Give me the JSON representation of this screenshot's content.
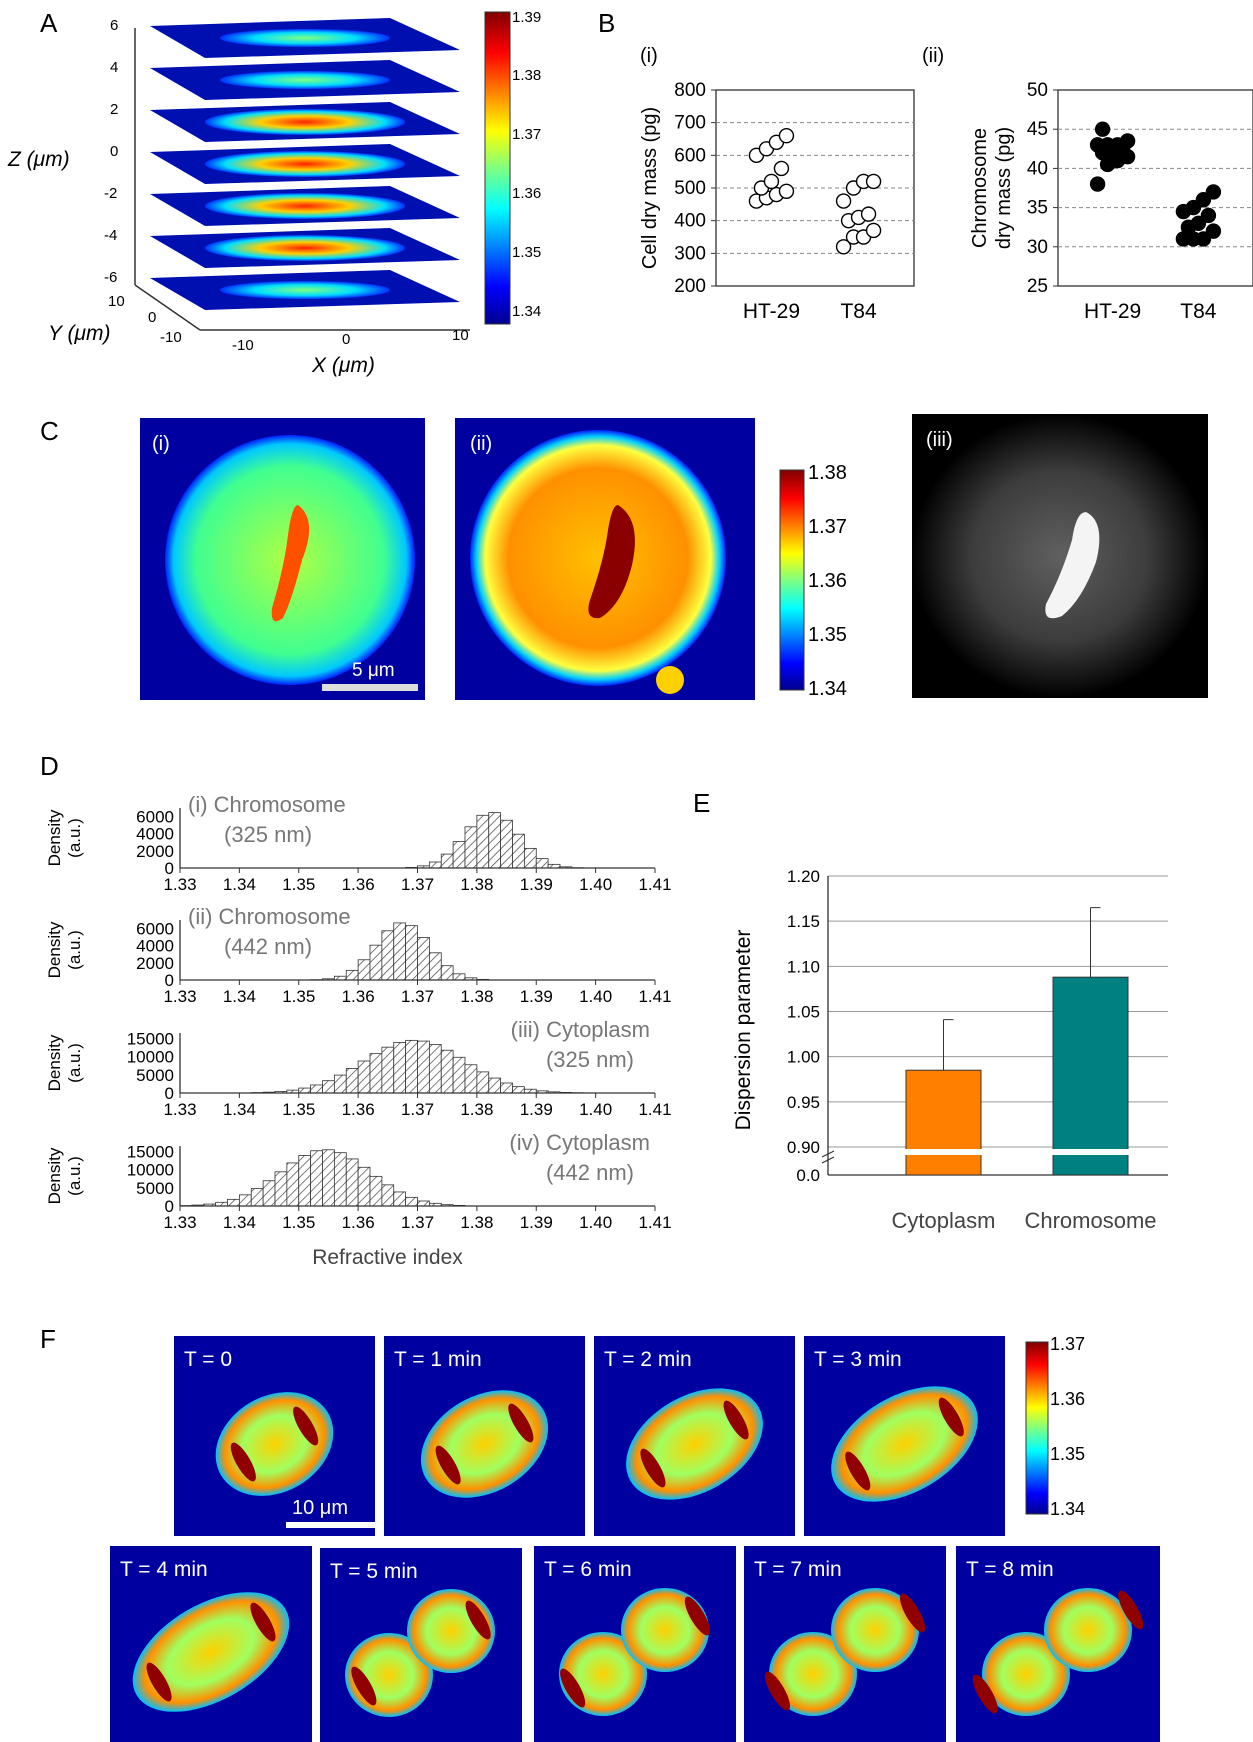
{
  "panel_letters": [
    "A",
    "B",
    "C",
    "D",
    "E",
    "F"
  ],
  "colors": {
    "jet": [
      "#00008f",
      "#0000ff",
      "#0080ff",
      "#00ffff",
      "#80ff80",
      "#ffff00",
      "#ff8000",
      "#ff0000",
      "#800000"
    ],
    "cytoplasm_bar": "#ff8000",
    "chromosome_bar": "#008080",
    "grid": "#999999"
  },
  "panelA": {
    "z_ticks": [
      "6",
      "4",
      "2",
      "0",
      "-2",
      "-4",
      "-6"
    ],
    "y_ticks": [
      "10",
      "0",
      "-10"
    ],
    "x_ticks": [
      "-10",
      "0",
      "10"
    ],
    "z_label": "Z (μm)",
    "y_label": "Y (μm)",
    "x_label": "X (μm)",
    "slice_intensity": [
      0.15,
      0.4,
      0.65,
      0.9,
      0.85,
      0.6,
      0.4,
      0.2
    ],
    "colorbar_ticks": [
      "1.39",
      "1.38",
      "1.37",
      "1.36",
      "1.35",
      "1.34"
    ]
  },
  "panelB": {
    "sub_labels": [
      "(i)",
      "(ii)"
    ],
    "chart_data": [
      {
        "type": "scatter",
        "ylabel": "Cell dry mass (pg)",
        "categories": [
          "HT-29",
          "T84"
        ],
        "ylim": [
          200,
          800
        ],
        "yticks": [
          "800",
          "700",
          "600",
          "500",
          "400",
          "300",
          "200"
        ],
        "grid": "dashed horizontal",
        "marker": "open circle",
        "series": [
          {
            "values": [
              460,
              470,
              480,
              490,
              500,
              520,
              560,
              600,
              620,
              640,
              660
            ]
          },
          {
            "values": [
              320,
              350,
              350,
              370,
              400,
              410,
              420,
              460,
              500,
              520,
              520
            ]
          }
        ]
      },
      {
        "type": "scatter",
        "ylabel": "Chromosome dry mass (pg)",
        "ylabel_lines": [
          "Chromosome",
          "dry mass (pg)"
        ],
        "categories": [
          "HT-29",
          "T84"
        ],
        "ylim": [
          25,
          50
        ],
        "yticks": [
          "50",
          "45",
          "40",
          "35",
          "30",
          "25"
        ],
        "grid": "dashed horizontal",
        "marker": "filled circle",
        "series": [
          {
            "values": [
              38,
              40.5,
              41,
              41.5,
              42,
              42,
              42.5,
              43,
              43,
              43,
              43.5,
              45
            ]
          },
          {
            "values": [
              31,
              31,
              31,
              32,
              32.5,
              33,
              34,
              34.5,
              35,
              36,
              37
            ]
          }
        ]
      }
    ]
  },
  "panelC": {
    "sub_labels": [
      "(i)",
      "(ii)",
      "(iii)"
    ],
    "scale_bar": "5 μm",
    "colorbar_ticks": [
      "1.38",
      "1.37",
      "1.36",
      "1.35",
      "1.34"
    ]
  },
  "panelD": {
    "chart_data": [
      {
        "type": "bar",
        "ylabel": "Density (a.u.)",
        "ylabel_lines": [
          "Density",
          "(a.u.)"
        ],
        "annotation": [
          "(i) Chromosome",
          "(325 nm)"
        ],
        "yticks": [
          "6000",
          "4000",
          "2000",
          "0"
        ],
        "ylim": [
          0,
          7000
        ],
        "xticks": [
          "1.33",
          "1.34",
          "1.35",
          "1.36",
          "1.37",
          "1.38",
          "1.39",
          "1.40",
          "1.41"
        ],
        "xlim": [
          1.33,
          1.41
        ],
        "mean": 1.3825,
        "sd": 0.0045,
        "peak": 6500
      },
      {
        "type": "bar",
        "ylabel": "Density (a.u.)",
        "ylabel_lines": [
          "Density",
          "(a.u.)"
        ],
        "annotation": [
          "(ii) Chromosome",
          "(442 nm)"
        ],
        "yticks": [
          "6000",
          "4000",
          "2000",
          "0"
        ],
        "ylim": [
          0,
          7000
        ],
        "xticks": [
          "1.33",
          "1.34",
          "1.35",
          "1.36",
          "1.37",
          "1.38",
          "1.39",
          "1.40",
          "1.41"
        ],
        "xlim": [
          1.33,
          1.41
        ],
        "mean": 1.3675,
        "sd": 0.0045,
        "peak": 6700
      },
      {
        "type": "bar",
        "ylabel": "Density (a.u.)",
        "ylabel_lines": [
          "Density",
          "(a.u.)"
        ],
        "annotation": [
          "(iii) Cytoplasm",
          "(325 nm)"
        ],
        "yticks": [
          "15000",
          "10000",
          "5000",
          "0"
        ],
        "ylim": [
          0,
          16500
        ],
        "xticks": [
          "1.33",
          "1.34",
          "1.35",
          "1.36",
          "1.37",
          "1.38",
          "1.39",
          "1.40",
          "1.41"
        ],
        "xlim": [
          1.33,
          1.41
        ],
        "mean": 1.3695,
        "sd": 0.0085,
        "peak": 14500
      },
      {
        "type": "bar",
        "ylabel": "Density (a.u.)",
        "ylabel_lines": [
          "Density",
          "(a.u.)"
        ],
        "annotation": [
          "(iv) Cytoplasm",
          "(442 nm)"
        ],
        "yticks": [
          "15000",
          "10000",
          "5000",
          "0"
        ],
        "ylim": [
          0,
          16500
        ],
        "xticks": [
          "1.33",
          "1.34",
          "1.35",
          "1.36",
          "1.37",
          "1.38",
          "1.39",
          "1.40",
          "1.41"
        ],
        "xlim": [
          1.33,
          1.41
        ],
        "xlabel": "Refractive index",
        "mean": 1.3545,
        "sd": 0.0075,
        "peak": 15500
      }
    ]
  },
  "panelE": {
    "chart_data": {
      "type": "bar",
      "ylabel": "Dispersion parameter",
      "categories": [
        "Cytoplasm",
        "Chromosome"
      ],
      "values": [
        0.985,
        1.088
      ],
      "errors": [
        0.056,
        0.077
      ],
      "yticks": [
        "1.20",
        "1.15",
        "1.10",
        "1.05",
        "1.00",
        "0.95",
        "0.90",
        "0.0"
      ],
      "ylim": [
        0.9,
        1.2
      ],
      "axis_break": true,
      "grid": "solid horizontal"
    }
  },
  "panelF": {
    "frames": [
      "T = 0",
      "T = 1 min",
      "T = 2 min",
      "T = 3 min",
      "T = 4 min",
      "T = 5 min",
      "T = 6 min",
      "T = 7 min",
      "T = 8 min"
    ],
    "scale_bar": "10 μm",
    "colorbar_ticks": [
      "1.37",
      "1.36",
      "1.35",
      "1.34"
    ]
  }
}
